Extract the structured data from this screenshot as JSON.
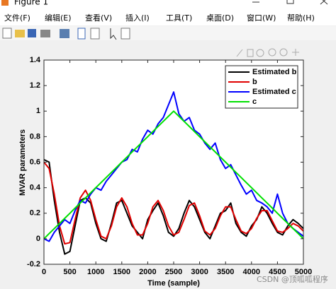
{
  "window": {
    "title": "Figure 1",
    "menu": [
      "文件(F)",
      "编辑(E)",
      "查看(V)",
      "插入(I)",
      "工具(T)",
      "桌面(D)",
      "窗口(W)",
      "帮助(H)"
    ]
  },
  "watermark": "CSDN @顶呱呱程序",
  "chart_data": {
    "type": "line",
    "x_label": "Time (sample)",
    "y_label": "MVAR parameters",
    "x": [
      0,
      100,
      200,
      300,
      400,
      500,
      600,
      700,
      800,
      900,
      1000,
      1100,
      1200,
      1300,
      1400,
      1500,
      1600,
      1700,
      1800,
      1900,
      2000,
      2100,
      2200,
      2300,
      2400,
      2500,
      2600,
      2700,
      2800,
      2900,
      3000,
      3100,
      3200,
      3300,
      3400,
      3500,
      3600,
      3700,
      3800,
      3900,
      4000,
      4100,
      4200,
      4300,
      4400,
      4500,
      4600,
      4700,
      4800,
      4900,
      5000
    ],
    "series": [
      {
        "name": "Estimated b",
        "color": "#000000",
        "values": [
          0.62,
          0.6,
          0.3,
          0.05,
          -0.12,
          -0.1,
          0.1,
          0.3,
          0.32,
          0.28,
          0.12,
          0.0,
          -0.02,
          0.12,
          0.28,
          0.3,
          0.2,
          0.1,
          0.05,
          0.0,
          0.15,
          0.22,
          0.28,
          0.18,
          0.05,
          0.02,
          0.08,
          0.2,
          0.3,
          0.25,
          0.15,
          0.05,
          0.0,
          0.1,
          0.2,
          0.22,
          0.28,
          0.12,
          0.05,
          0.02,
          0.1,
          0.15,
          0.25,
          0.2,
          0.12,
          0.05,
          0.03,
          0.1,
          0.15,
          0.12,
          0.08
        ]
      },
      {
        "name": "b",
        "color": "#e00000",
        "values": [
          0.6,
          0.55,
          0.35,
          0.1,
          -0.04,
          -0.03,
          0.15,
          0.32,
          0.38,
          0.3,
          0.15,
          0.02,
          0.0,
          0.1,
          0.25,
          0.32,
          0.25,
          0.12,
          0.03,
          0.03,
          0.12,
          0.25,
          0.3,
          0.22,
          0.1,
          0.03,
          0.05,
          0.15,
          0.26,
          0.28,
          0.18,
          0.06,
          0.03,
          0.08,
          0.18,
          0.25,
          0.25,
          0.15,
          0.06,
          0.04,
          0.08,
          0.16,
          0.22,
          0.22,
          0.14,
          0.06,
          0.05,
          0.08,
          0.12,
          0.1,
          0.06
        ]
      },
      {
        "name": "Estimated c",
        "color": "#0000ff",
        "values": [
          0.0,
          -0.02,
          0.05,
          0.1,
          0.15,
          0.12,
          0.22,
          0.3,
          0.28,
          0.35,
          0.4,
          0.38,
          0.45,
          0.5,
          0.55,
          0.6,
          0.62,
          0.7,
          0.68,
          0.78,
          0.85,
          0.82,
          0.9,
          0.95,
          1.05,
          1.15,
          0.98,
          0.92,
          0.95,
          0.85,
          0.82,
          0.75,
          0.7,
          0.75,
          0.62,
          0.55,
          0.58,
          0.5,
          0.42,
          0.35,
          0.38,
          0.3,
          0.28,
          0.25,
          0.2,
          0.35,
          0.2,
          0.12,
          0.08,
          0.05,
          0.02
        ]
      },
      {
        "name": "c",
        "color": "#00e000",
        "values": [
          0,
          0.04,
          0.08,
          0.12,
          0.16,
          0.2,
          0.24,
          0.28,
          0.32,
          0.36,
          0.4,
          0.44,
          0.48,
          0.52,
          0.56,
          0.6,
          0.64,
          0.68,
          0.72,
          0.76,
          0.8,
          0.84,
          0.88,
          0.92,
          0.96,
          1,
          0.96,
          0.92,
          0.88,
          0.84,
          0.8,
          0.76,
          0.72,
          0.68,
          0.64,
          0.6,
          0.56,
          0.52,
          0.48,
          0.44,
          0.4,
          0.36,
          0.32,
          0.28,
          0.24,
          0.2,
          0.16,
          0.12,
          0.08,
          0.04,
          0
        ]
      }
    ],
    "xlim": [
      0,
      5000
    ],
    "ylim": [
      -0.2,
      1.4
    ],
    "xticks": [
      0,
      500,
      1000,
      1500,
      2000,
      2500,
      3000,
      3500,
      4000,
      4500,
      5000
    ],
    "yticks": [
      -0.2,
      0,
      0.2,
      0.4,
      0.6,
      0.8,
      1,
      1.2,
      1.4
    ],
    "legend": "upper right"
  }
}
